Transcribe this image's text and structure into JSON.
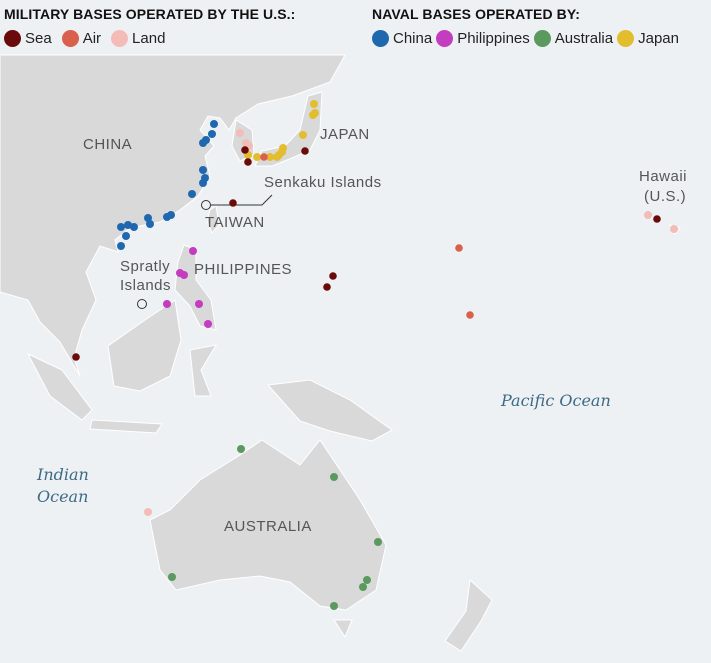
{
  "legend_us": {
    "title": "MILITARY BASES OPERATED BY THE U.S.:",
    "items": [
      {
        "label": "Sea",
        "color": "#6b0a0a"
      },
      {
        "label": "Air",
        "color": "#d9604c"
      },
      {
        "label": "Land",
        "color": "#f4bcb6"
      }
    ]
  },
  "legend_naval": {
    "title": "NAVAL BASES OPERATED BY:",
    "items": [
      {
        "label": "China",
        "color": "#1f68b0"
      },
      {
        "label": "Philippines",
        "color": "#c43cbf"
      },
      {
        "label": "Australia",
        "color": "#5a9a5e"
      },
      {
        "label": "Japan",
        "color": "#e2be2e"
      }
    ]
  },
  "labels": {
    "china": "CHINA",
    "japan": "JAPAN",
    "taiwan": "TAIWAN",
    "philippines": "PHILIPPINES",
    "australia": "AUSTRALIA",
    "senkaku": "Senkaku Islands",
    "spratly_1": "Spratly",
    "spratly_2": "Islands",
    "hawaii_1": "Hawaii",
    "hawaii_2": "(U.S.)",
    "pacific": "Pacific Ocean",
    "indian_1": "Indian",
    "indian_2": "Ocean"
  },
  "colors": {
    "land": "#d9d9d9",
    "water": "#eef1f4"
  }
}
